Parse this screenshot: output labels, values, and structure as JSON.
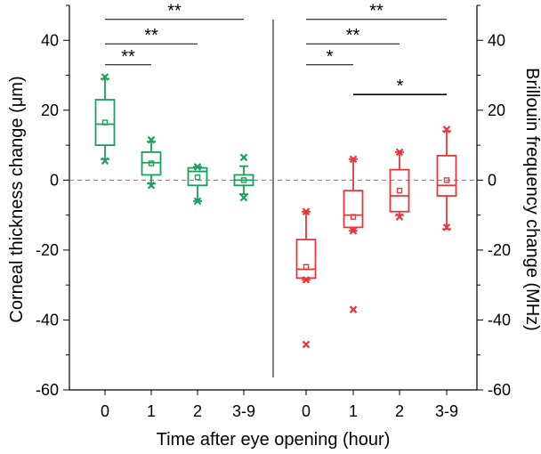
{
  "chart_data": {
    "type": "box",
    "xlabel": "Time after eye opening (hour)",
    "ylabel_left": "Corneal thickness change (μm)",
    "ylabel_right": "Brillouin frequency change (MHz)",
    "ylim": [
      -60,
      50
    ],
    "yticks": [
      -60,
      -40,
      -20,
      0,
      20,
      40
    ],
    "ytick_labels": [
      "-60",
      "-40",
      "-20",
      "0",
      "20",
      "40"
    ],
    "reference_line": 0,
    "categories": [
      "0",
      "1",
      "2",
      "3-9"
    ],
    "colors": {
      "left": "#1aa05a",
      "right": "#e8373a"
    },
    "groups": [
      {
        "side": "left",
        "boxes": [
          {
            "category": "0",
            "whisker_low": 6,
            "q1": 10,
            "median": 16,
            "q3": 23,
            "whisker_high": 29,
            "mean": 16.5,
            "extremes": [
              29.5,
              5.5
            ],
            "outliers": []
          },
          {
            "category": "1",
            "whisker_low": -1,
            "q1": 1.5,
            "median": 5,
            "q3": 8,
            "whisker_high": 11,
            "mean": 4.8,
            "extremes": [
              11.5,
              -1.5
            ],
            "outliers": []
          },
          {
            "category": "2",
            "whisker_low": -6,
            "q1": -1.5,
            "median": 2.5,
            "q3": 3.5,
            "whisker_high": 3.8,
            "mean": 0.8,
            "extremes": [
              3.8,
              -6
            ],
            "outliers": []
          },
          {
            "category": "3-9",
            "whisker_low": -4,
            "q1": -1.5,
            "median": 0,
            "q3": 1.5,
            "whisker_high": 4,
            "mean": 0,
            "extremes": [
              6.5,
              -5
            ],
            "outliers": []
          }
        ],
        "significance": [
          {
            "from": "0",
            "to": "1",
            "y": 33,
            "label": "**"
          },
          {
            "from": "0",
            "to": "2",
            "y": 39,
            "label": "**"
          },
          {
            "from": "0",
            "to": "3-9",
            "y": 46,
            "label": "**"
          }
        ]
      },
      {
        "side": "right",
        "boxes": [
          {
            "category": "0",
            "whisker_low": -28.5,
            "q1": -28,
            "median": -25.5,
            "q3": -17,
            "whisker_high": -9,
            "mean": -24.8,
            "extremes": [
              -9,
              -28.5
            ],
            "outliers": [
              -47
            ]
          },
          {
            "category": "1",
            "whisker_low": -14.5,
            "q1": -13.5,
            "median": -10,
            "q3": -3,
            "whisker_high": 6,
            "mean": -10.5,
            "extremes": [
              6,
              -14.5
            ],
            "outliers": [
              -37
            ]
          },
          {
            "category": "2",
            "whisker_low": -10,
            "q1": -9,
            "median": -4.5,
            "q3": 3,
            "whisker_high": 8,
            "mean": -3,
            "extremes": [
              8,
              -10.5
            ],
            "outliers": []
          },
          {
            "category": "3-9",
            "whisker_low": -14,
            "q1": -4.5,
            "median": -1.5,
            "q3": 7,
            "whisker_high": 14,
            "mean": 0,
            "extremes": [
              14.5,
              -13.5
            ],
            "outliers": []
          }
        ],
        "significance": [
          {
            "from": "0",
            "to": "1",
            "y": 33,
            "label": "*"
          },
          {
            "from": "0",
            "to": "2",
            "y": 39,
            "label": "**"
          },
          {
            "from": "0",
            "to": "3-9",
            "y": 46,
            "label": "**"
          },
          {
            "from": "1",
            "to": "3-9",
            "y": 24.5,
            "label": "*"
          }
        ]
      }
    ]
  }
}
